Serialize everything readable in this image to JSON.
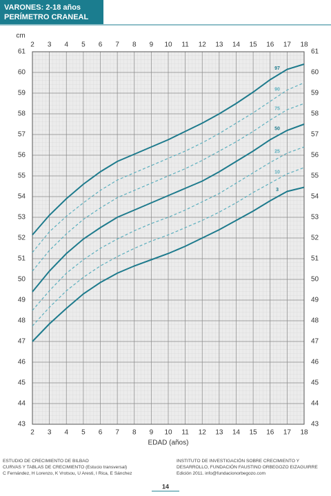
{
  "chart_data": {
    "type": "line",
    "title": "VARONES: 2-18 años",
    "subtitle": "PERÍMETRO CRANEAL",
    "y_label": "cm",
    "x_label": "EDAD (años)",
    "x": [
      2,
      3,
      4,
      5,
      6,
      7,
      8,
      9,
      10,
      11,
      12,
      13,
      14,
      15,
      16,
      17,
      18
    ],
    "xlim": [
      2,
      18
    ],
    "ylim": [
      43,
      61
    ],
    "xticks": [
      2,
      3,
      4,
      5,
      6,
      7,
      8,
      9,
      10,
      11,
      12,
      13,
      14,
      15,
      16,
      17,
      18
    ],
    "yticks": [
      43,
      44,
      45,
      46,
      47,
      48,
      49,
      50,
      51,
      52,
      53,
      54,
      55,
      56,
      57,
      58,
      59,
      60,
      61
    ],
    "grid": true,
    "series": [
      {
        "name": "97",
        "color": "#1d7a8c",
        "style": "solid",
        "values": [
          52.15,
          53.1,
          53.9,
          54.6,
          55.2,
          55.7,
          56.05,
          56.4,
          56.75,
          57.15,
          57.55,
          58.0,
          58.5,
          59.05,
          59.65,
          60.15,
          60.4
        ]
      },
      {
        "name": "90",
        "color": "#5aaebd",
        "style": "dashed",
        "values": [
          51.3,
          52.3,
          53.05,
          53.7,
          54.3,
          54.8,
          55.15,
          55.5,
          55.85,
          56.2,
          56.6,
          57.05,
          57.55,
          58.05,
          58.6,
          59.15,
          59.5
        ]
      },
      {
        "name": "75",
        "color": "#5aaebd",
        "style": "dashed",
        "values": [
          50.4,
          51.4,
          52.2,
          52.9,
          53.45,
          53.95,
          54.3,
          54.65,
          55.0,
          55.35,
          55.75,
          56.2,
          56.65,
          57.15,
          57.7,
          58.2,
          58.5
        ]
      },
      {
        "name": "50",
        "color": "#1d7a8c",
        "style": "solid",
        "values": [
          49.4,
          50.4,
          51.25,
          51.95,
          52.5,
          53.0,
          53.35,
          53.7,
          54.05,
          54.4,
          54.75,
          55.2,
          55.7,
          56.2,
          56.75,
          57.2,
          57.5
        ]
      },
      {
        "name": "25",
        "color": "#5aaebd",
        "style": "dashed",
        "values": [
          48.5,
          49.45,
          50.3,
          50.95,
          51.5,
          51.95,
          52.35,
          52.7,
          53.0,
          53.35,
          53.75,
          54.15,
          54.65,
          55.15,
          55.65,
          56.1,
          56.4
        ]
      },
      {
        "name": "10",
        "color": "#5aaebd",
        "style": "dashed",
        "values": [
          47.75,
          48.65,
          49.45,
          50.1,
          50.65,
          51.1,
          51.5,
          51.85,
          52.15,
          52.5,
          52.85,
          53.25,
          53.7,
          54.2,
          54.65,
          55.1,
          55.4
        ]
      },
      {
        "name": "3",
        "color": "#1d7a8c",
        "style": "solid",
        "values": [
          47.0,
          47.85,
          48.6,
          49.3,
          49.85,
          50.3,
          50.65,
          50.95,
          51.25,
          51.6,
          52.0,
          52.4,
          52.85,
          53.3,
          53.8,
          54.25,
          54.45
        ]
      }
    ]
  },
  "footer": {
    "left": [
      "ESTUDIO DE CRECIMIENTO DE BILBAO",
      "CURVAS Y TABLAS DE CRECIMIENTO (Estucio transversal)",
      "C Fernández, H Lorenzo, K Vrotsou, U Aresti, I Rica, E Sánchez"
    ],
    "right": [
      "INSTITUTO DE INVESTIGACIÓN SOBRE CRECIMIENTO Y",
      "DESARROLLO, FUNDACIÓN FAUSTINO ORBEGOZO EIZAGUIRRE",
      "Edición 2011. info@fundacionorbegozo.com"
    ],
    "page": "14"
  }
}
